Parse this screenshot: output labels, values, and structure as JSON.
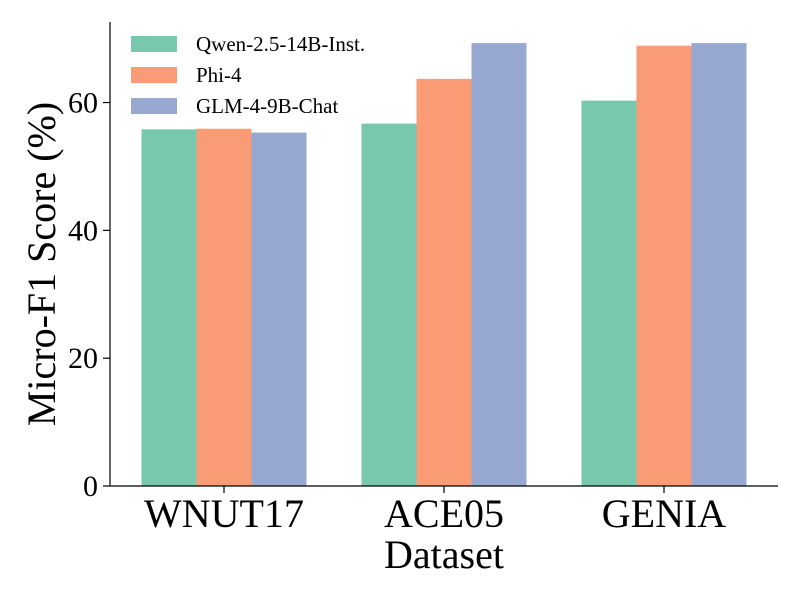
{
  "chart_data": {
    "type": "bar",
    "title": "",
    "xlabel": "Dataset",
    "ylabel": "Micro-F1 Score (%)",
    "categories": [
      "WNUT17",
      "ACE05",
      "GENIA"
    ],
    "series": [
      {
        "name": "Qwen-2.5-14B-Inst.",
        "color": "#78C8AE",
        "values": [
          55.8,
          56.7,
          60.3
        ]
      },
      {
        "name": "Phi-4",
        "color": "#F99B75",
        "values": [
          55.9,
          63.7,
          68.9
        ]
      },
      {
        "name": "GLM-4-9B-Chat",
        "color": "#97A9D1",
        "values": [
          55.3,
          69.3,
          69.3
        ]
      }
    ],
    "yticks": [
      "0",
      "20",
      "40",
      "60"
    ],
    "ylim": [
      0,
      72.6
    ],
    "legend_position": "top-left",
    "grid": false
  }
}
